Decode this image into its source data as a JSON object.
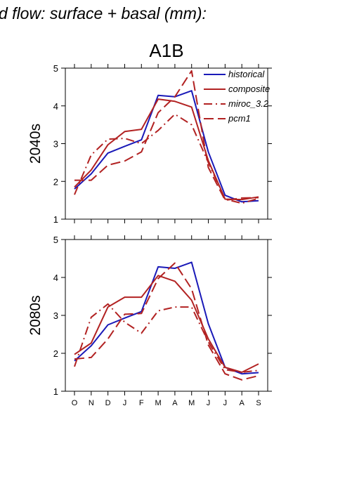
{
  "figure": {
    "suptitle": "d flow: surface + basal (mm):",
    "panel_title": "A1B"
  },
  "chart_data": [
    {
      "type": "line",
      "ylabel": "2040s",
      "categories": [
        "O",
        "N",
        "D",
        "J",
        "F",
        "M",
        "A",
        "M",
        "J",
        "J",
        "A",
        "S"
      ],
      "ylim": [
        1,
        5
      ],
      "yticks": [
        1,
        2,
        3,
        4,
        5
      ],
      "legend_position": "top-right",
      "series": [
        {
          "name": "historical",
          "color": "#1a1ab8",
          "style": "solid",
          "values": [
            1.8,
            2.2,
            2.75,
            2.93,
            3.1,
            4.28,
            4.24,
            4.4,
            2.78,
            1.63,
            1.46,
            1.49
          ]
        },
        {
          "name": "composite",
          "color": "#b22222",
          "style": "solid",
          "values": [
            1.85,
            2.3,
            2.97,
            3.32,
            3.38,
            4.18,
            4.12,
            3.97,
            2.55,
            1.53,
            1.52,
            1.59
          ]
        },
        {
          "name": "miroc_3.2",
          "color": "#b22222",
          "style": "dashdot",
          "values": [
            1.65,
            2.7,
            3.12,
            3.14,
            3.0,
            3.35,
            3.78,
            3.5,
            2.5,
            1.53,
            1.42,
            1.55
          ]
        },
        {
          "name": "pcm1",
          "color": "#b22222",
          "style": "longdash",
          "values": [
            2.03,
            2.03,
            2.43,
            2.54,
            2.78,
            3.82,
            4.24,
            4.93,
            2.37,
            1.5,
            1.56,
            1.57
          ]
        }
      ]
    },
    {
      "type": "line",
      "ylabel": "2080s",
      "categories": [
        "O",
        "N",
        "D",
        "J",
        "F",
        "M",
        "A",
        "M",
        "J",
        "J",
        "A",
        "S"
      ],
      "ylim": [
        1,
        5
      ],
      "yticks": [
        1,
        2,
        3,
        4,
        5
      ],
      "series": [
        {
          "name": "historical",
          "color": "#1a1ab8",
          "style": "solid",
          "values": [
            1.8,
            2.2,
            2.75,
            2.93,
            3.1,
            4.28,
            4.24,
            4.4,
            2.78,
            1.63,
            1.46,
            1.49
          ]
        },
        {
          "name": "composite",
          "color": "#b22222",
          "style": "solid",
          "values": [
            1.97,
            2.27,
            3.22,
            3.48,
            3.48,
            4.05,
            3.9,
            3.4,
            2.38,
            1.63,
            1.5,
            1.72
          ]
        },
        {
          "name": "miroc_3.2",
          "color": "#b22222",
          "style": "dashdot",
          "values": [
            1.65,
            2.95,
            3.3,
            2.82,
            2.53,
            3.12,
            3.22,
            3.22,
            2.3,
            1.57,
            1.5,
            1.55
          ]
        },
        {
          "name": "pcm1",
          "color": "#b22222",
          "style": "longdash",
          "values": [
            1.85,
            1.89,
            2.38,
            3.03,
            3.05,
            3.97,
            4.38,
            3.7,
            2.22,
            1.46,
            1.3,
            1.41
          ]
        }
      ]
    }
  ]
}
